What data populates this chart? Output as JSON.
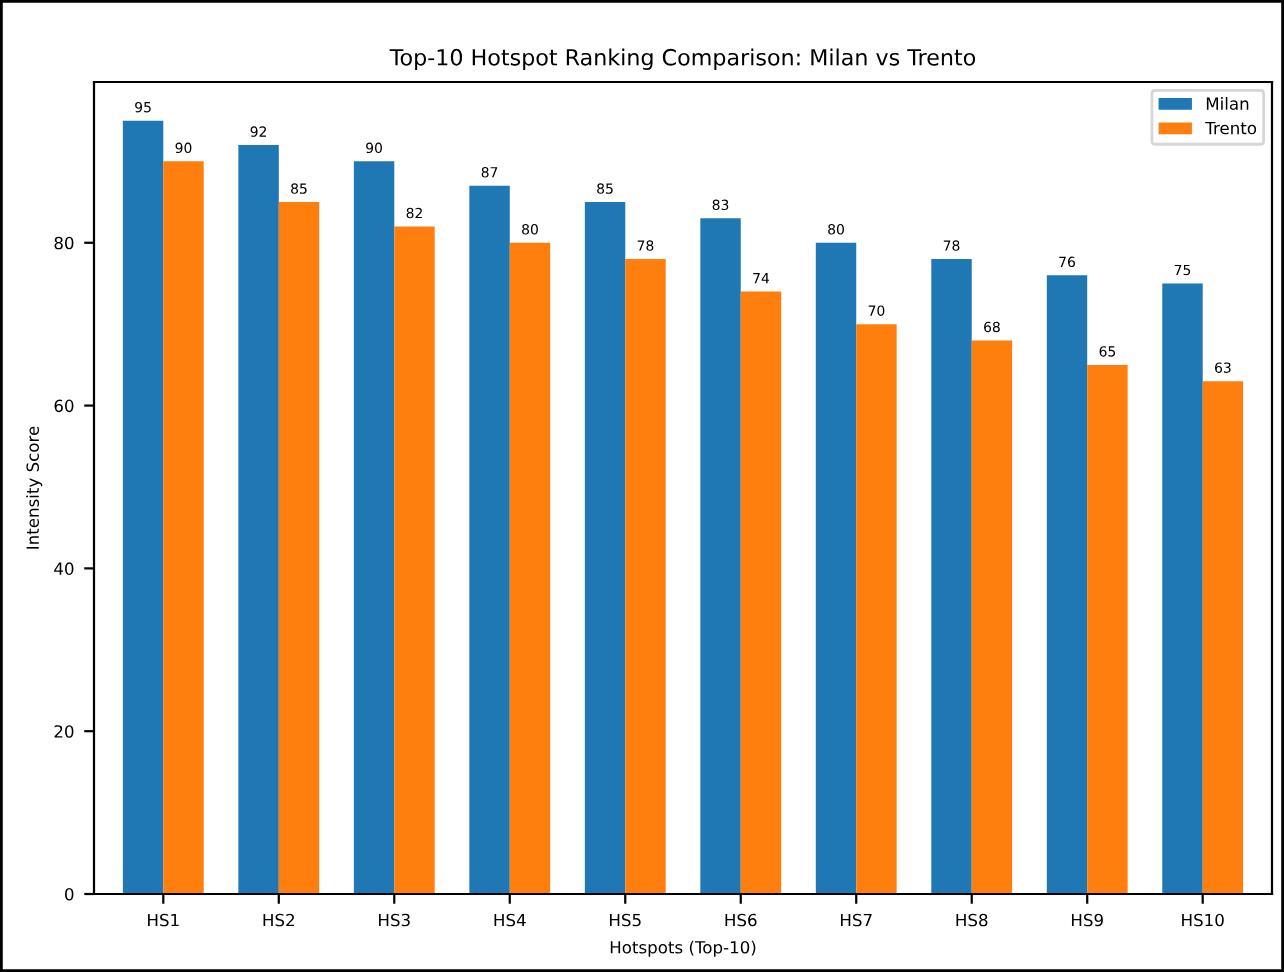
{
  "chart_data": {
    "type": "bar",
    "title": "Top-10 Hotspot Ranking Comparison: Milan vs Trento",
    "xlabel": "Hotspots (Top-10)",
    "ylabel": "Intensity Score",
    "categories": [
      "HS1",
      "HS2",
      "HS3",
      "HS4",
      "HS5",
      "HS6",
      "HS7",
      "HS8",
      "HS9",
      "HS10"
    ],
    "series": [
      {
        "name": "Milan",
        "color": "#1f77b4",
        "values": [
          95,
          92,
          90,
          87,
          85,
          83,
          80,
          78,
          76,
          75
        ]
      },
      {
        "name": "Trento",
        "color": "#ff7f0e",
        "values": [
          90,
          85,
          82,
          80,
          78,
          74,
          70,
          68,
          65,
          63
        ]
      }
    ],
    "ylim": [
      0,
      99.75
    ],
    "yticks": [
      0,
      20,
      40,
      60,
      80
    ],
    "data_labels": true,
    "legend": "top right",
    "grid": false
  }
}
